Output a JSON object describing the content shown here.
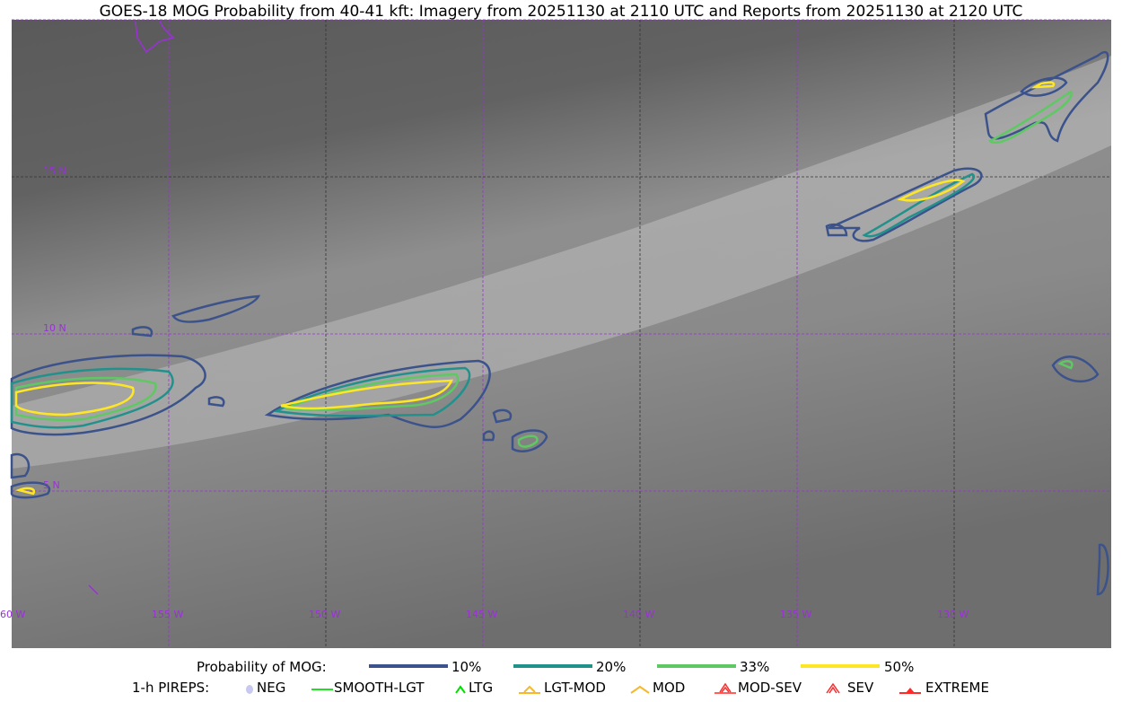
{
  "title": "GOES-18 MOG Probability from 40-41 kft: Imagery from 20251130 at 2110 UTC and Reports from 20251130 at 2120 UTC",
  "map": {
    "lat_labels": [
      "15 N",
      "10 N",
      "5 N"
    ],
    "lon_labels": [
      "60 W",
      "155 W",
      "150 W",
      "145 W",
      "140 W",
      "135 W",
      "130 W"
    ],
    "grid_color": "#9b30d9",
    "coastline_color": "#9b30d9"
  },
  "legend": {
    "probability": {
      "label": "Probability of MOG:",
      "levels": [
        {
          "label": "10%",
          "color": "#3b528b"
        },
        {
          "label": "20%",
          "color": "#21918c"
        },
        {
          "label": "33%",
          "color": "#5ec962"
        },
        {
          "label": "50%",
          "color": "#fde725"
        }
      ]
    },
    "pireps": {
      "label": "1-h PIREPS:",
      "items": [
        {
          "label": "NEG",
          "icon": "neg-circle-icon",
          "color": "#c8c8f0"
        },
        {
          "label": "SMOOTH-LGT",
          "icon": "line-icon",
          "color": "#22e022"
        },
        {
          "label": "LTG",
          "icon": "caret-icon",
          "color": "#00e000"
        },
        {
          "label": "LGT-MOD",
          "icon": "caret-bar-icon",
          "color": "#f5b82e"
        },
        {
          "label": "MOD",
          "icon": "caret-icon",
          "color": "#f5b82e"
        },
        {
          "label": "MOD-SEV",
          "icon": "double-caret-bar-icon",
          "color": "#ff2a2a"
        },
        {
          "label": "SEV",
          "icon": "double-caret-icon",
          "color": "#ff2a2a"
        },
        {
          "label": "EXTREME",
          "icon": "filled-triangle-icon",
          "color": "#ff2a2a"
        }
      ]
    }
  }
}
